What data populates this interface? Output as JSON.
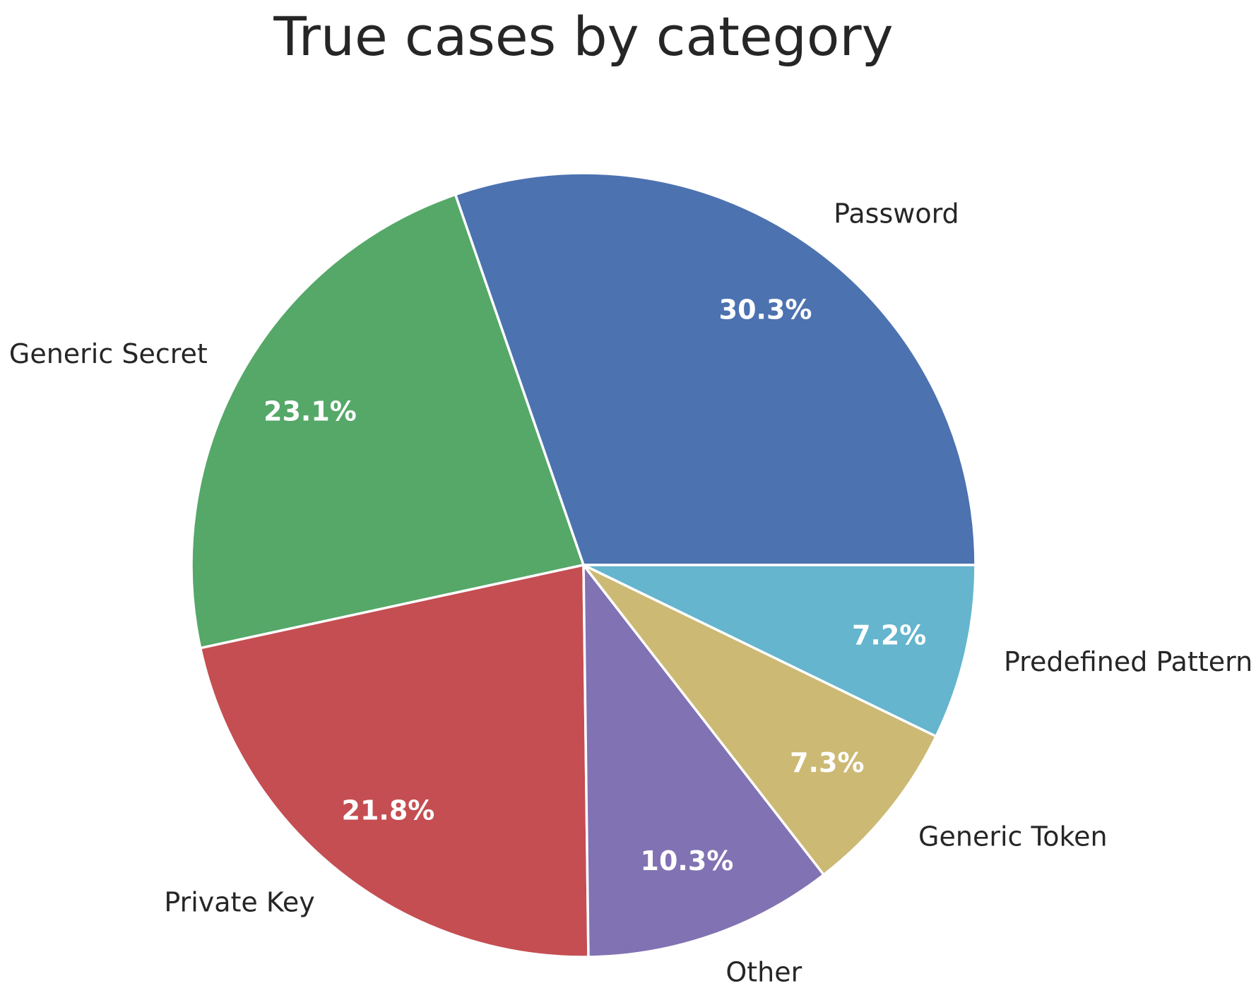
{
  "chart_data": {
    "type": "pie",
    "title": "True cases by category",
    "start_angle_deg": 0,
    "direction": "counterclockwise",
    "slices": [
      {
        "label": "Password",
        "percent_label": "30.3%",
        "value": 30.3,
        "color": "#4c72b0"
      },
      {
        "label": "Generic Secret",
        "percent_label": "23.1%",
        "value": 23.1,
        "color": "#55a868"
      },
      {
        "label": "Private Key",
        "percent_label": "21.8%",
        "value": 21.8,
        "color": "#c44e52"
      },
      {
        "label": "Other",
        "percent_label": "10.3%",
        "value": 10.3,
        "color": "#8172b3"
      },
      {
        "label": "Generic Token",
        "percent_label": "7.3%",
        "value": 7.3,
        "color": "#ccb974"
      },
      {
        "label": "Predefined Pattern",
        "percent_label": "7.2%",
        "value": 7.2,
        "color": "#64b5cd"
      }
    ]
  }
}
